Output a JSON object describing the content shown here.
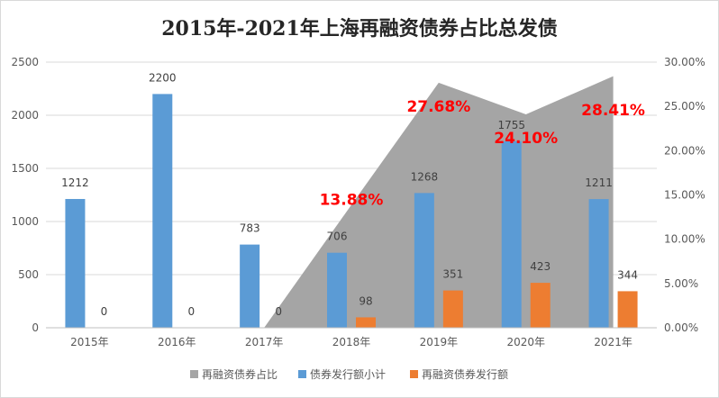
{
  "chart_data": {
    "type": "bar",
    "title": "2015年-2021年上海再融资债券占比总发债",
    "categories": [
      "2015年",
      "2016年",
      "2017年",
      "2018年",
      "2019年",
      "2020年",
      "2021年"
    ],
    "series": [
      {
        "name": "再融资债券占比",
        "kind": "area",
        "axis": "right",
        "values": [
          0,
          0,
          0,
          13.88,
          27.68,
          24.1,
          28.41
        ],
        "color": "#a5a5a5",
        "labels": [
          "",
          "",
          "",
          "13.88%",
          "27.68%",
          "24.10%",
          "28.41%"
        ]
      },
      {
        "name": "债券发行额小计",
        "kind": "bar",
        "axis": "left",
        "values": [
          1212,
          2200,
          783,
          706,
          1268,
          1755,
          1211
        ],
        "color": "#5b9bd5"
      },
      {
        "name": "再融资债券发行额",
        "kind": "bar",
        "axis": "left",
        "values": [
          0,
          0,
          0,
          98,
          351,
          423,
          344
        ],
        "color": "#ed7d31"
      }
    ],
    "left_axis": {
      "min": 0,
      "max": 2500,
      "ticks": [
        "0",
        "500",
        "1000",
        "1500",
        "2000",
        "2500"
      ]
    },
    "right_axis": {
      "min": 0,
      "max": 30,
      "ticks": [
        "0.00%",
        "5.00%",
        "10.00%",
        "15.00%",
        "20.00%",
        "25.00%",
        "30.00%"
      ]
    },
    "grid": true,
    "legend_position": "bottom",
    "legend": [
      "再融资债券占比",
      "债券发行额小计",
      "再融资债券发行额"
    ]
  }
}
